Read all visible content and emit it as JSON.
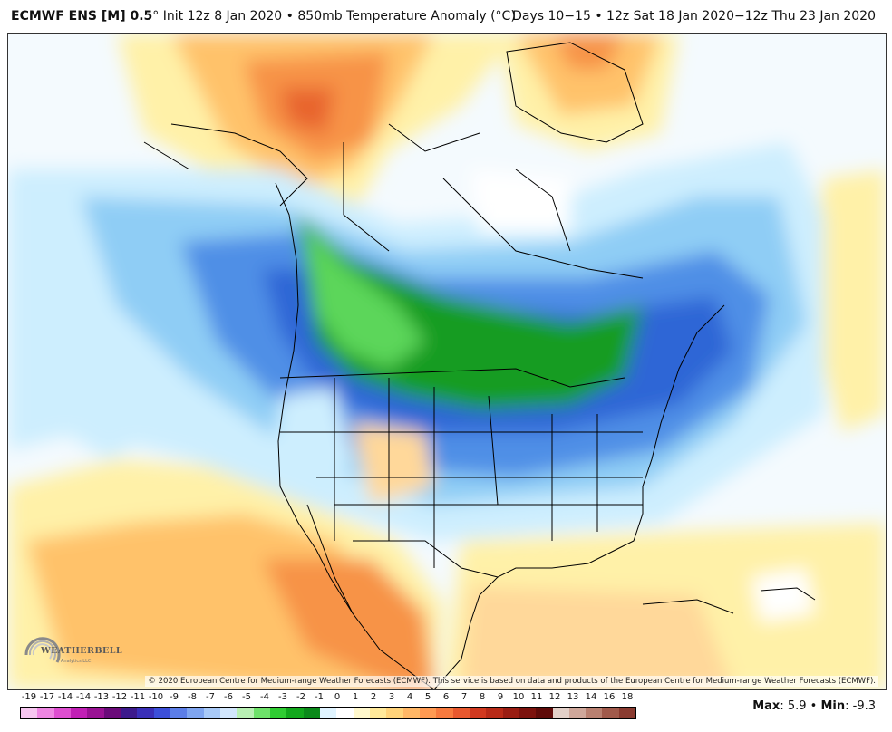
{
  "header": {
    "product": "ECMWF ENS [M] 0.5",
    "product_degree": "°",
    "init": "Init 12z 8 Jan 2020",
    "bullet": "•",
    "field": "850mb Temperature Anomaly (",
    "field_unit": "°C",
    "field_close": ")",
    "valid": "Days 10−15 • 12z Sat 18 Jan 2020−12z Thu 23 Jan 2020"
  },
  "map": {
    "copyright": "© 2020 European Centre for Medium-range Weather Forecasts (ECMWF). This service is based on data and products of the European Centre for Medium-range Weather Forecasts (ECMWF).",
    "logo_text": "WEATHERBELL",
    "logo_sub": "Analytics LLC"
  },
  "colorbar": {
    "labels": [
      "-19",
      "-17",
      "-14",
      "-14",
      "-13",
      "-12",
      "-11",
      "-10",
      "-9",
      "-8",
      "-7",
      "-6",
      "-5",
      "-4",
      "-3",
      "-2",
      "-1",
      "0",
      "1",
      "2",
      "3",
      "4",
      "5",
      "6",
      "7",
      "8",
      "9",
      "10",
      "11",
      "12",
      "13",
      "14",
      "16",
      "18"
    ],
    "colors": [
      "#f7c6f0",
      "#ee86e2",
      "#de4ed0",
      "#c11fb5",
      "#9a1294",
      "#6b0b7a",
      "#3d1a8c",
      "#3a2fb8",
      "#3c4fd9",
      "#5c7ee8",
      "#7fa5f0",
      "#a8c9f7",
      "#d2e6fc",
      "#b8f0b3",
      "#6ee26a",
      "#2fcc32",
      "#12a81c",
      "#0b8a1a",
      "#e0f4ff",
      "#ffffff",
      "#fff8cc",
      "#ffe99a",
      "#ffd37a",
      "#ffb766",
      "#ff9a52",
      "#f77a3e",
      "#e8582e",
      "#d1391f",
      "#b82a17",
      "#9a1d12",
      "#7c120d",
      "#5f0b09",
      "#e3d0c8",
      "#cfa79a",
      "#b98070",
      "#a15a4b",
      "#8a3b30"
    ]
  },
  "stats": {
    "max_label": "Max",
    "max_value": ": 5.9",
    "sep": " • ",
    "min_label": "Min",
    "min_value": ": -9.3"
  },
  "colors": {
    "warm_light": "#fff1a8",
    "warm_mid": "#ffc26b",
    "warm_strong": "#f79347",
    "warm_hot": "#e8652e",
    "cool_light": "#cdeefe",
    "cool_mid": "#8fcdf5",
    "cool_blue": "#4f8fe6",
    "cool_deep": "#2f66d6",
    "green_light": "#5cd65a",
    "green_deep": "#149c24",
    "neutral": "#f4fafe"
  }
}
